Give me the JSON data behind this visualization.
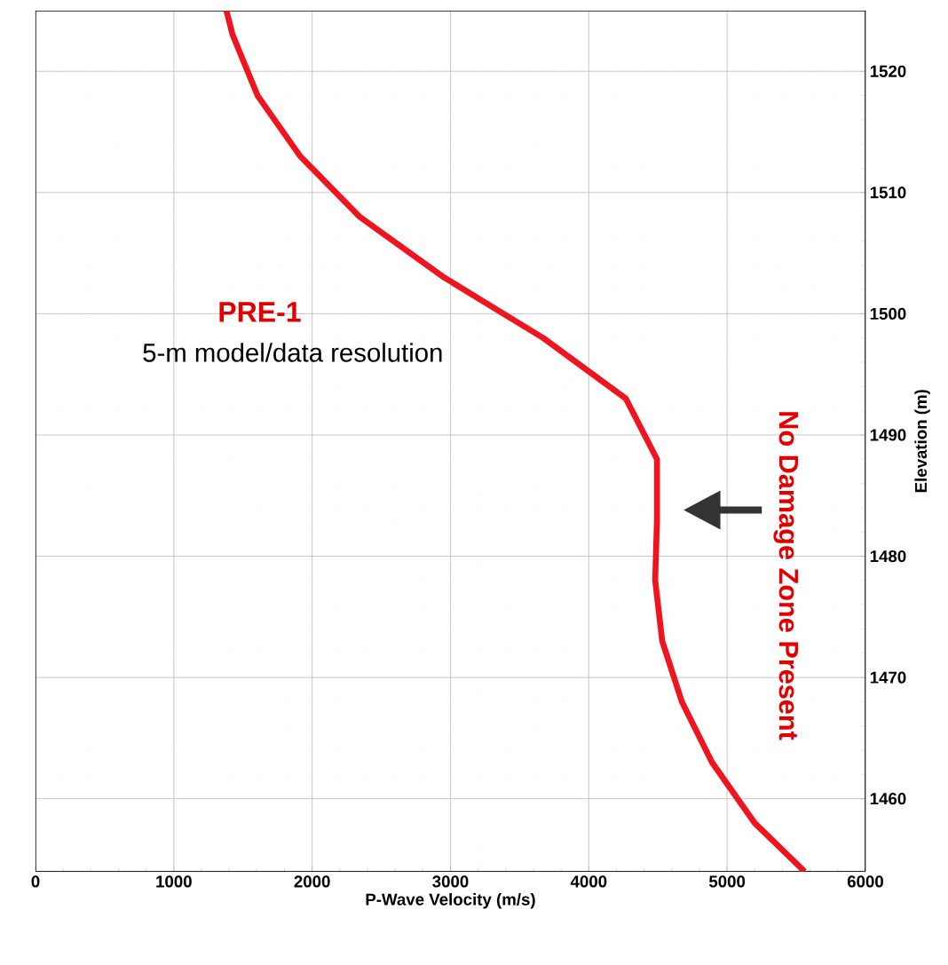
{
  "chart_data": {
    "type": "line",
    "xlabel": "P-Wave Velocity (m/s)",
    "ylabel": "Elevation (m)",
    "series": [
      {
        "color": "#f0141e",
        "x": [
          1380,
          1425,
          1605,
          1913,
          2343,
          2953,
          3671,
          4268,
          4493,
          4493,
          4480,
          4531,
          4673,
          4891,
          5199,
          5560
        ],
        "values": [
          1525,
          1523,
          1518,
          1513,
          1508,
          1503,
          1498,
          1493,
          1488,
          1483,
          1478,
          1473,
          1468,
          1463,
          1458,
          1454
        ]
      }
    ],
    "xlim": [
      0,
      6000
    ],
    "ylim": [
      1454,
      1525
    ],
    "xticks": [
      0,
      1000,
      2000,
      3000,
      4000,
      5000,
      6000
    ],
    "yticks": [
      1460,
      1470,
      1480,
      1490,
      1500,
      1510,
      1520
    ],
    "grid": true,
    "line_style": "solid",
    "marker": "none",
    "annotations": [
      "PRE-1",
      "5-m model/data resolution",
      "No Damage Zone Present"
    ]
  }
}
